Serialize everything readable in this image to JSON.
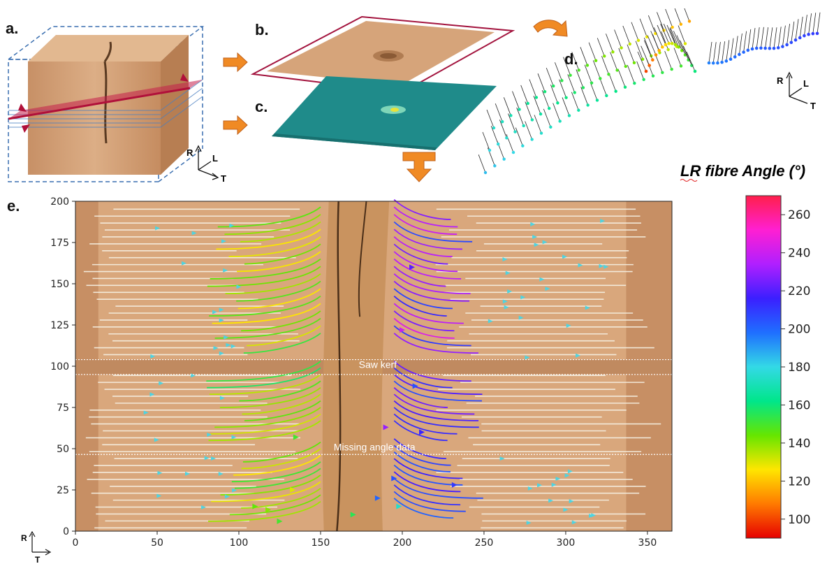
{
  "panels": {
    "a": "a.",
    "b": "b.",
    "c": "c.",
    "d": "d.",
    "e": "e."
  },
  "orientation_axes": {
    "a": {
      "up": "R",
      "depth": "L",
      "side": "T"
    },
    "d": {
      "up": "R",
      "depth": "L",
      "side": "T"
    },
    "e": {
      "up": "R",
      "side": "T"
    }
  },
  "colorbar": {
    "title": "LR fibre Angle (°)",
    "ticks": [
      "100",
      "120",
      "140",
      "160",
      "180",
      "200",
      "220",
      "240",
      "260"
    ],
    "range": [
      90,
      270
    ],
    "colors": [
      "#e60000",
      "#ff7a00",
      "#ffe600",
      "#66e600",
      "#00e68a",
      "#33d9e6",
      "#1f6fff",
      "#3b1fff",
      "#b01fff",
      "#ff1fd2",
      "#ff1f4b"
    ]
  },
  "panel_e": {
    "annotations": {
      "saw_kerf": "Saw kerf",
      "missing": "Missing angle data"
    },
    "x_ticks": [
      "0",
      "50",
      "100",
      "150",
      "200",
      "250",
      "300",
      "350"
    ],
    "y_ticks": [
      "0",
      "25",
      "50",
      "75",
      "100",
      "125",
      "150",
      "175",
      "200"
    ],
    "xlim": [
      0,
      365
    ],
    "ylim": [
      0,
      200
    ]
  },
  "colors": {
    "wood": "#d9a77c",
    "wood_dark": "#b98258",
    "frame_red": "#a3143e",
    "arrow_orange": "#f08a24",
    "teal_scan": "#1f8b8a"
  }
}
